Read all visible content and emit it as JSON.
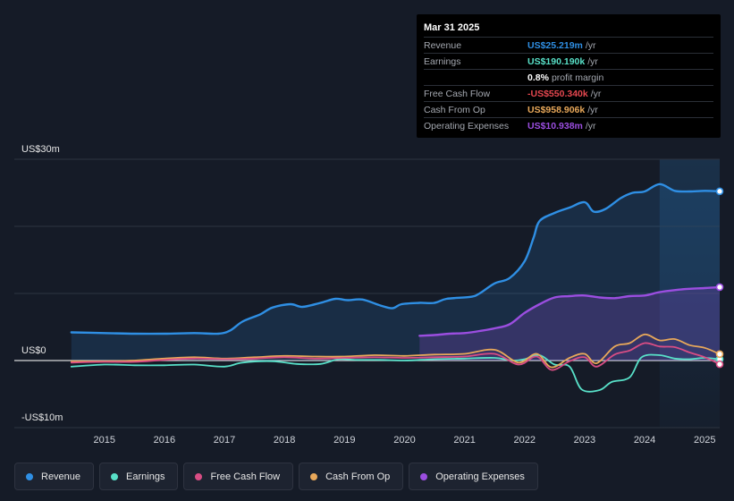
{
  "chart_data": {
    "type": "line",
    "title": "",
    "xlabel": "",
    "ylabel": "",
    "ylim": [
      -10,
      30
    ],
    "y_tick_labels": [
      {
        "value": 30,
        "label": "US$30m"
      },
      {
        "value": 0,
        "label": "US$0"
      },
      {
        "value": -10,
        "label": "-US$10m"
      }
    ],
    "x_ticks": [
      {
        "value": 2015,
        "label": "2015"
      },
      {
        "value": 2016,
        "label": "2016"
      },
      {
        "value": 2017,
        "label": "2017"
      },
      {
        "value": 2018,
        "label": "2018"
      },
      {
        "value": 2019,
        "label": "2019"
      },
      {
        "value": 2020,
        "label": "2020"
      },
      {
        "value": 2021,
        "label": "2021"
      },
      {
        "value": 2022,
        "label": "2022"
      },
      {
        "value": 2023,
        "label": "2023"
      },
      {
        "value": 2024,
        "label": "2024"
      },
      {
        "value": 2025,
        "label": "2025"
      }
    ],
    "xlim": [
      2013.5,
      2025.25
    ],
    "highlight_start": 2024.25,
    "series": [
      {
        "name": "Revenue",
        "color": "#2f8fe4",
        "fill": true,
        "points": [
          [
            2014.45,
            4.2
          ],
          [
            2015,
            4.1
          ],
          [
            2015.5,
            4.0
          ],
          [
            2016,
            4.0
          ],
          [
            2016.5,
            4.1
          ],
          [
            2016.9,
            4.0
          ],
          [
            2017.1,
            4.5
          ],
          [
            2017.3,
            5.8
          ],
          [
            2017.6,
            6.9
          ],
          [
            2017.8,
            7.9
          ],
          [
            2018.1,
            8.4
          ],
          [
            2018.3,
            8.0
          ],
          [
            2018.6,
            8.6
          ],
          [
            2018.85,
            9.2
          ],
          [
            2019.05,
            9.0
          ],
          [
            2019.3,
            9.1
          ],
          [
            2019.6,
            8.2
          ],
          [
            2019.8,
            7.8
          ],
          [
            2019.95,
            8.4
          ],
          [
            2020.25,
            8.6
          ],
          [
            2020.5,
            8.6
          ],
          [
            2020.7,
            9.2
          ],
          [
            2021.1,
            9.5
          ],
          [
            2021.25,
            10.0
          ],
          [
            2021.5,
            11.5
          ],
          [
            2021.75,
            12.3
          ],
          [
            2022.0,
            14.8
          ],
          [
            2022.15,
            18.3
          ],
          [
            2022.25,
            20.8
          ],
          [
            2022.5,
            22.0
          ],
          [
            2022.75,
            22.8
          ],
          [
            2023.0,
            23.6
          ],
          [
            2023.15,
            22.2
          ],
          [
            2023.35,
            22.6
          ],
          [
            2023.6,
            24.2
          ],
          [
            2023.8,
            25.0
          ],
          [
            2024.0,
            25.2
          ],
          [
            2024.25,
            26.3
          ],
          [
            2024.5,
            25.3
          ],
          [
            2024.75,
            25.2
          ],
          [
            2025.0,
            25.3
          ],
          [
            2025.25,
            25.22
          ]
        ]
      },
      {
        "name": "Earnings",
        "color": "#58e0c8",
        "fill": false,
        "points": [
          [
            2014.45,
            -0.9
          ],
          [
            2015,
            -0.6
          ],
          [
            2015.5,
            -0.7
          ],
          [
            2016,
            -0.7
          ],
          [
            2016.5,
            -0.6
          ],
          [
            2017.0,
            -0.9
          ],
          [
            2017.3,
            -0.3
          ],
          [
            2017.8,
            -0.1
          ],
          [
            2018.2,
            -0.5
          ],
          [
            2018.6,
            -0.5
          ],
          [
            2018.9,
            0.2
          ],
          [
            2019.2,
            0.1
          ],
          [
            2019.6,
            0.1
          ],
          [
            2020.0,
            0.0
          ],
          [
            2020.5,
            0.2
          ],
          [
            2021.0,
            0.3
          ],
          [
            2021.5,
            0.4
          ],
          [
            2021.8,
            0.0
          ],
          [
            2022.0,
            0.2
          ],
          [
            2022.25,
            0.8
          ],
          [
            2022.5,
            -0.6
          ],
          [
            2022.75,
            -0.9
          ],
          [
            2022.95,
            -4.3
          ],
          [
            2023.25,
            -4.4
          ],
          [
            2023.45,
            -3.2
          ],
          [
            2023.75,
            -2.5
          ],
          [
            2023.95,
            0.5
          ],
          [
            2024.25,
            0.8
          ],
          [
            2024.5,
            0.3
          ],
          [
            2024.75,
            0.2
          ],
          [
            2025.0,
            0.4
          ],
          [
            2025.25,
            0.19
          ]
        ]
      },
      {
        "name": "Free Cash Flow",
        "color": "#d84d84",
        "fill": false,
        "points": [
          [
            2014.45,
            -0.3
          ],
          [
            2015,
            -0.2
          ],
          [
            2015.5,
            -0.2
          ],
          [
            2016,
            0.1
          ],
          [
            2016.5,
            0.3
          ],
          [
            2017.0,
            0.2
          ],
          [
            2017.5,
            0.3
          ],
          [
            2018.0,
            0.5
          ],
          [
            2018.5,
            0.3
          ],
          [
            2019.0,
            0.4
          ],
          [
            2019.5,
            0.5
          ],
          [
            2020.0,
            0.4
          ],
          [
            2020.5,
            0.5
          ],
          [
            2021.0,
            0.6
          ],
          [
            2021.5,
            1.0
          ],
          [
            2021.9,
            -0.6
          ],
          [
            2022.2,
            0.6
          ],
          [
            2022.45,
            -1.4
          ],
          [
            2022.75,
            -0.1
          ],
          [
            2023.0,
            0.5
          ],
          [
            2023.2,
            -0.9
          ],
          [
            2023.5,
            0.9
          ],
          [
            2023.75,
            1.5
          ],
          [
            2024.0,
            2.6
          ],
          [
            2024.25,
            2.1
          ],
          [
            2024.5,
            2.0
          ],
          [
            2024.75,
            1.2
          ],
          [
            2025.0,
            0.5
          ],
          [
            2025.25,
            -0.55
          ]
        ]
      },
      {
        "name": "Cash From Op",
        "color": "#e8a85a",
        "fill": false,
        "points": [
          [
            2014.45,
            -0.1
          ],
          [
            2015,
            -0.1
          ],
          [
            2015.5,
            0.0
          ],
          [
            2016,
            0.3
          ],
          [
            2016.5,
            0.5
          ],
          [
            2017.0,
            0.3
          ],
          [
            2017.5,
            0.5
          ],
          [
            2018.0,
            0.7
          ],
          [
            2018.5,
            0.6
          ],
          [
            2019.0,
            0.6
          ],
          [
            2019.5,
            0.8
          ],
          [
            2020.0,
            0.7
          ],
          [
            2020.5,
            0.9
          ],
          [
            2021.0,
            1.0
          ],
          [
            2021.5,
            1.6
          ],
          [
            2021.9,
            -0.3
          ],
          [
            2022.2,
            1.0
          ],
          [
            2022.45,
            -1.0
          ],
          [
            2022.75,
            0.4
          ],
          [
            2023.0,
            1.0
          ],
          [
            2023.2,
            -0.4
          ],
          [
            2023.5,
            2.1
          ],
          [
            2023.75,
            2.6
          ],
          [
            2024.0,
            3.9
          ],
          [
            2024.25,
            3.0
          ],
          [
            2024.5,
            3.2
          ],
          [
            2024.75,
            2.3
          ],
          [
            2025.0,
            1.9
          ],
          [
            2025.25,
            0.96
          ]
        ]
      },
      {
        "name": "Operating Expenses",
        "color": "#9b4ee0",
        "fill": true,
        "points": [
          [
            2020.25,
            3.7
          ],
          [
            2020.5,
            3.8
          ],
          [
            2020.75,
            4.0
          ],
          [
            2021.0,
            4.1
          ],
          [
            2021.25,
            4.4
          ],
          [
            2021.5,
            4.8
          ],
          [
            2021.75,
            5.4
          ],
          [
            2022.0,
            7.1
          ],
          [
            2022.25,
            8.4
          ],
          [
            2022.5,
            9.4
          ],
          [
            2022.75,
            9.6
          ],
          [
            2023.0,
            9.7
          ],
          [
            2023.25,
            9.4
          ],
          [
            2023.5,
            9.3
          ],
          [
            2023.75,
            9.6
          ],
          [
            2024.0,
            9.7
          ],
          [
            2024.25,
            10.2
          ],
          [
            2024.5,
            10.5
          ],
          [
            2024.75,
            10.7
          ],
          [
            2025.0,
            10.8
          ],
          [
            2025.25,
            10.94
          ]
        ]
      }
    ]
  },
  "tooltip": {
    "date": "Mar 31 2025",
    "rows": [
      {
        "label": "Revenue",
        "value": "US$25.219m",
        "unit": "/yr",
        "color": "#2f8fe4"
      },
      {
        "label": "Earnings",
        "value": "US$190.190k",
        "unit": "/yr",
        "color": "#58e0c8"
      },
      {
        "label": "",
        "value": "0.8%",
        "unit": "profit margin",
        "color": "#ffffff"
      },
      {
        "label": "Free Cash Flow",
        "value": "-US$550.340k",
        "unit": "/yr",
        "color": "#e5474f"
      },
      {
        "label": "Cash From Op",
        "value": "US$958.906k",
        "unit": "/yr",
        "color": "#e8a85a"
      },
      {
        "label": "Operating Expenses",
        "value": "US$10.938m",
        "unit": "/yr",
        "color": "#9b4ee0"
      }
    ]
  },
  "legend": [
    {
      "label": "Revenue",
      "color": "#2f8fe4"
    },
    {
      "label": "Earnings",
      "color": "#58e0c8"
    },
    {
      "label": "Free Cash Flow",
      "color": "#d84d84"
    },
    {
      "label": "Cash From Op",
      "color": "#e8a85a"
    },
    {
      "label": "Operating Expenses",
      "color": "#9b4ee0"
    }
  ]
}
